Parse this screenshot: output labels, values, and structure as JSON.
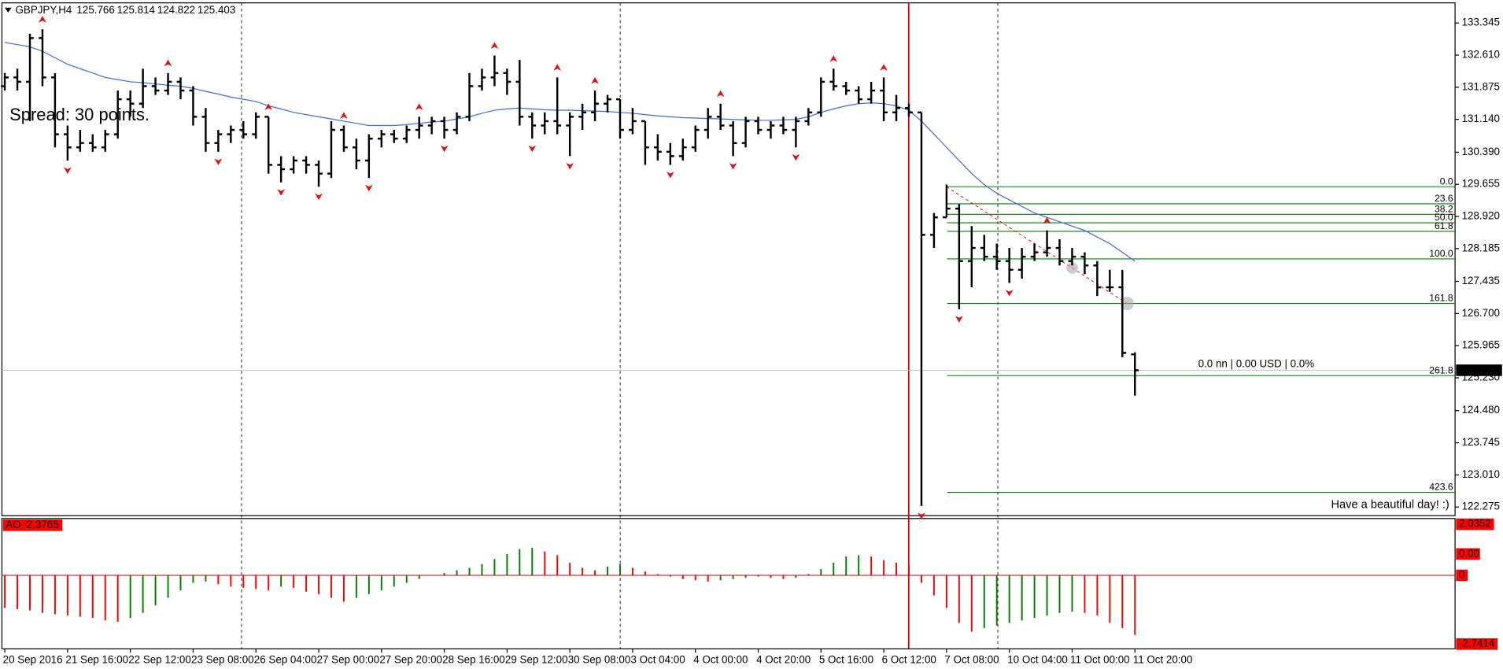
{
  "chart_data": {
    "type": "ohlc",
    "symbol": "GBPJPY,H4",
    "categories": [
      "20 Sep 2016",
      null,
      null,
      null,
      null,
      "21 Sep 16:00",
      null,
      null,
      null,
      null,
      "22 Sep 12:00",
      null,
      null,
      null,
      null,
      "23 Sep 08:00",
      null,
      null,
      null,
      null,
      "26 Sep 04:00",
      null,
      null,
      null,
      null,
      "27 Sep 00:00",
      null,
      null,
      null,
      null,
      "27 Sep 20:00",
      null,
      null,
      null,
      null,
      "28 Sep 16:00",
      null,
      null,
      null,
      null,
      "29 Sep 12:00",
      null,
      null,
      null,
      null,
      "30 Sep 08:00",
      null,
      null,
      null,
      null,
      "3 Oct 04:00",
      null,
      null,
      null,
      null,
      "4 Oct 00:00",
      null,
      null,
      null,
      null,
      "4 Oct 20:00",
      null,
      null,
      null,
      null,
      "5 Oct 16:00",
      null,
      null,
      null,
      null,
      "6 Oct 12:00",
      null,
      null,
      null,
      null,
      "7 Oct 08:00",
      null,
      null,
      null,
      null,
      "10 Oct 04:00",
      null,
      null,
      null,
      null,
      "11 Oct 00:00",
      null,
      null,
      null,
      null,
      "11 Oct 20:00"
    ],
    "ohlc": [
      [
        131.9,
        132.2,
        131.8,
        132.1
      ],
      [
        132.1,
        132.3,
        131.8,
        132.0
      ],
      [
        132.0,
        133.1,
        131.1,
        133.0
      ],
      [
        133.0,
        133.2,
        131.9,
        132.1
      ],
      [
        132.1,
        132.2,
        130.5,
        130.8
      ],
      [
        130.8,
        131.0,
        130.2,
        130.5
      ],
      [
        130.5,
        130.9,
        130.4,
        130.6
      ],
      [
        130.6,
        130.8,
        130.4,
        130.5
      ],
      [
        130.5,
        130.9,
        130.4,
        130.8
      ],
      [
        130.8,
        131.8,
        130.7,
        131.6
      ],
      [
        131.6,
        131.8,
        131.2,
        131.5
      ],
      [
        131.5,
        132.3,
        131.4,
        131.9
      ],
      [
        131.9,
        132.1,
        131.7,
        131.8
      ],
      [
        131.8,
        132.2,
        131.7,
        132.0
      ],
      [
        132.0,
        132.1,
        131.6,
        131.8
      ],
      [
        131.8,
        131.9,
        131.0,
        131.2
      ],
      [
        131.2,
        131.4,
        130.4,
        130.6
      ],
      [
        130.6,
        130.9,
        130.4,
        130.8
      ],
      [
        130.8,
        131.0,
        130.6,
        130.9
      ],
      [
        130.9,
        131.1,
        130.7,
        130.8
      ],
      [
        130.8,
        131.3,
        130.7,
        131.2
      ],
      [
        131.2,
        131.2,
        129.9,
        130.1
      ],
      [
        130.1,
        130.3,
        129.7,
        130.0
      ],
      [
        130.0,
        130.3,
        129.9,
        130.2
      ],
      [
        130.2,
        130.3,
        129.9,
        130.1
      ],
      [
        130.1,
        130.2,
        129.6,
        129.9
      ],
      [
        129.9,
        131.1,
        129.8,
        130.9
      ],
      [
        130.9,
        131.0,
        130.4,
        130.5
      ],
      [
        130.5,
        130.7,
        130.0,
        130.2
      ],
      [
        130.2,
        130.8,
        129.8,
        130.7
      ],
      [
        130.7,
        130.9,
        130.5,
        130.8
      ],
      [
        130.8,
        130.9,
        130.6,
        130.7
      ],
      [
        130.7,
        131.0,
        130.6,
        130.9
      ],
      [
        130.9,
        131.2,
        130.7,
        131.0
      ],
      [
        131.0,
        131.2,
        130.8,
        131.1
      ],
      [
        131.1,
        131.2,
        130.7,
        130.9
      ],
      [
        130.9,
        131.3,
        130.8,
        131.2
      ],
      [
        131.2,
        132.2,
        131.1,
        131.9
      ],
      [
        131.9,
        132.3,
        131.8,
        132.1
      ],
      [
        132.1,
        132.6,
        131.9,
        132.2
      ],
      [
        132.2,
        132.3,
        131.7,
        132.0
      ],
      [
        132.0,
        132.5,
        131.0,
        131.2
      ],
      [
        131.2,
        131.3,
        130.7,
        131.0
      ],
      [
        131.0,
        131.3,
        130.8,
        131.1
      ],
      [
        131.1,
        132.1,
        130.8,
        131.0
      ],
      [
        131.0,
        131.3,
        130.3,
        131.2
      ],
      [
        131.2,
        131.5,
        130.9,
        131.3
      ],
      [
        131.3,
        131.8,
        131.1,
        131.5
      ],
      [
        131.5,
        131.7,
        131.3,
        131.6
      ],
      [
        131.6,
        131.6,
        130.7,
        130.9
      ],
      [
        130.9,
        131.4,
        130.8,
        131.1
      ],
      [
        131.1,
        131.1,
        130.1,
        130.5
      ],
      [
        130.5,
        130.8,
        130.2,
        130.4
      ],
      [
        130.4,
        130.6,
        130.1,
        130.3
      ],
      [
        130.3,
        130.7,
        130.2,
        130.5
      ],
      [
        130.5,
        131.0,
        130.4,
        130.9
      ],
      [
        130.9,
        131.4,
        130.7,
        131.2
      ],
      [
        131.2,
        131.5,
        130.9,
        131.0
      ],
      [
        131.0,
        131.1,
        130.3,
        130.6
      ],
      [
        130.6,
        131.2,
        130.5,
        131.1
      ],
      [
        131.1,
        131.2,
        130.8,
        130.9
      ],
      [
        130.9,
        131.1,
        130.7,
        131.0
      ],
      [
        131.0,
        131.2,
        130.8,
        130.9
      ],
      [
        130.9,
        131.2,
        130.5,
        131.1
      ],
      [
        131.1,
        131.4,
        131.0,
        131.3
      ],
      [
        131.3,
        132.1,
        131.2,
        132.0
      ],
      [
        132.0,
        132.3,
        131.8,
        131.9
      ],
      [
        131.9,
        132.0,
        131.7,
        131.8
      ],
      [
        131.8,
        131.9,
        131.5,
        131.6
      ],
      [
        131.6,
        132.0,
        131.5,
        131.8
      ],
      [
        131.8,
        132.1,
        131.1,
        131.3
      ],
      [
        131.3,
        131.7,
        131.1,
        131.4
      ],
      [
        131.4,
        131.5,
        131.2,
        131.3
      ],
      [
        131.3,
        131.3,
        122.3,
        128.5
      ],
      [
        128.5,
        129.0,
        128.2,
        128.9
      ],
      [
        128.9,
        129.65,
        128.9,
        129.1
      ],
      [
        129.1,
        129.2,
        126.8,
        127.9
      ],
      [
        127.9,
        128.7,
        127.3,
        128.2
      ],
      [
        128.2,
        128.5,
        127.9,
        128.0
      ],
      [
        128.0,
        128.3,
        127.7,
        127.9
      ],
      [
        127.9,
        128.2,
        127.4,
        127.7
      ],
      [
        127.7,
        128.2,
        127.5,
        128.0
      ],
      [
        128.0,
        128.3,
        127.9,
        128.1
      ],
      [
        128.1,
        128.6,
        128.0,
        128.2
      ],
      [
        128.2,
        128.4,
        127.8,
        127.9
      ],
      [
        127.9,
        128.2,
        127.8,
        128.0
      ],
      [
        128.0,
        128.1,
        127.6,
        127.8
      ],
      [
        127.8,
        127.9,
        127.1,
        127.3
      ],
      [
        127.3,
        127.7,
        127.2,
        127.3
      ],
      [
        127.3,
        127.7,
        125.7,
        125.8
      ],
      [
        125.766,
        125.814,
        124.822,
        125.403
      ]
    ],
    "color": "#000000",
    "ylim": [
      122.078,
      133.783
    ],
    "yticks": [
      133.345,
      {
        "value": 132.61,
        "label": "132.610"
      },
      131.875,
      {
        "value": 131.14,
        "label": "131.140"
      },
      {
        "value": 130.39,
        "label": "130.390"
      },
      129.655,
      {
        "value": 128.92,
        "label": "128.920"
      },
      128.185,
      127.435,
      {
        "value": 126.7,
        "label": "126.700"
      },
      125.965,
      {
        "value": 125.23,
        "label": "125.230"
      },
      {
        "value": 124.48,
        "label": "124.480"
      },
      123.745,
      {
        "value": 123.01,
        "label": "123.010"
      },
      122.275
    ],
    "ma": {
      "color": "#4169e1",
      "values": [
        132.9,
        132.85,
        132.8,
        132.7,
        132.55,
        132.4,
        132.3,
        132.2,
        132.1,
        132.05,
        132.0,
        131.98,
        131.95,
        131.92,
        131.9,
        131.85,
        131.78,
        131.72,
        131.65,
        131.6,
        131.55,
        131.45,
        131.38,
        131.3,
        131.25,
        131.2,
        131.15,
        131.1,
        131.05,
        131.0,
        131.0,
        131.0,
        131.02,
        131.05,
        131.08,
        131.1,
        131.15,
        131.2,
        131.28,
        131.35,
        131.38,
        131.4,
        131.38,
        131.36,
        131.35,
        131.35,
        131.34,
        131.33,
        131.32,
        131.3,
        131.28,
        131.25,
        131.22,
        131.2,
        131.18,
        131.17,
        131.16,
        131.15,
        131.14,
        131.13,
        131.12,
        131.12,
        131.13,
        131.14,
        131.2,
        131.3,
        131.38,
        131.45,
        131.5,
        131.52,
        131.5,
        131.45,
        131.35,
        131.1,
        130.8,
        130.5,
        130.2,
        129.9,
        129.65,
        129.45,
        129.3,
        129.15,
        129.0,
        128.9,
        128.8,
        128.7,
        128.6,
        128.45,
        128.3,
        128.1,
        127.9
      ]
    },
    "fractals": {
      "color": "#e01010",
      "up": [
        null,
        null,
        null,
        133.2,
        null,
        null,
        null,
        null,
        null,
        null,
        null,
        null,
        null,
        132.2,
        null,
        null,
        null,
        null,
        null,
        null,
        null,
        131.2,
        null,
        null,
        null,
        null,
        null,
        131.0,
        null,
        null,
        null,
        null,
        null,
        131.2,
        null,
        null,
        null,
        null,
        null,
        132.6,
        null,
        null,
        null,
        null,
        132.1,
        null,
        null,
        131.8,
        null,
        null,
        null,
        null,
        null,
        null,
        null,
        null,
        null,
        131.5,
        null,
        null,
        null,
        null,
        null,
        null,
        null,
        null,
        132.3,
        null,
        null,
        null,
        132.1,
        null,
        null,
        null,
        null,
        null,
        null,
        null,
        null,
        null,
        null,
        null,
        null,
        128.6,
        null,
        null,
        null,
        null,
        null,
        null,
        null
      ],
      "down": [
        null,
        null,
        null,
        null,
        null,
        130.2,
        null,
        null,
        null,
        null,
        null,
        null,
        null,
        null,
        null,
        null,
        null,
        130.4,
        null,
        null,
        null,
        null,
        129.7,
        null,
        null,
        129.6,
        null,
        null,
        null,
        129.8,
        null,
        null,
        null,
        null,
        null,
        130.7,
        null,
        null,
        null,
        null,
        null,
        null,
        130.7,
        null,
        null,
        130.3,
        null,
        null,
        null,
        null,
        null,
        null,
        null,
        130.1,
        null,
        null,
        null,
        null,
        130.3,
        null,
        null,
        null,
        null,
        130.5,
        null,
        null,
        null,
        null,
        null,
        null,
        null,
        null,
        null,
        122.3,
        null,
        null,
        126.8,
        null,
        null,
        null,
        127.4,
        null,
        null,
        null,
        null,
        null,
        null,
        null,
        null,
        null,
        null
      ]
    },
    "fibo": {
      "color": "#008000",
      "price_0": 129.6,
      "price_100": 127.95,
      "levels": [
        {
          "value": 0,
          "label": "0.0"
        },
        23.6,
        38.2,
        {
          "value": 50,
          "label": "50.0"
        },
        61.8,
        {
          "value": 100,
          "label": "100.0"
        },
        161.8,
        261.8,
        423.6
      ]
    },
    "trendline": {
      "color": "#ff0000",
      "values": [
        129.6,
        126.93
      ]
    },
    "spread_text": "Spread: 30 points.",
    "info_text": "0.0 nn | 0.00 USD | 0.0%",
    "greeting": "Have a beautiful day! :)",
    "ao": {
      "type": "histogram",
      "name": "AO",
      "up_color": "#008000",
      "down_color": "#ff0000",
      "zero_color": "#c00000",
      "values": [
        -1.3,
        -1.35,
        -1.4,
        -1.5,
        -1.55,
        -1.6,
        -1.65,
        -1.7,
        -1.8,
        -1.85,
        -1.7,
        -1.5,
        -1.2,
        -0.9,
        -0.6,
        -0.3,
        -0.25,
        -0.35,
        -0.45,
        -0.5,
        -0.55,
        -0.6,
        -0.45,
        -0.5,
        -0.65,
        -0.75,
        -0.9,
        -1.05,
        -0.9,
        -0.75,
        -0.6,
        -0.45,
        -0.3,
        -0.15,
        0,
        0.1,
        0.2,
        0.3,
        0.45,
        0.65,
        0.85,
        1.05,
        1.1,
        0.95,
        0.8,
        0.5,
        0.3,
        0.2,
        0.35,
        0.45,
        0.3,
        0.15,
        0.05,
        -0.05,
        -0.15,
        -0.2,
        -0.25,
        -0.2,
        -0.15,
        -0.1,
        -0.05,
        -0.1,
        -0.15,
        -0.1,
        0.05,
        0.25,
        0.5,
        0.75,
        0.8,
        0.75,
        0.6,
        0.5,
        0.4,
        -0.3,
        -0.8,
        -1.3,
        -1.9,
        -2.25,
        -2.1,
        -2.0,
        -1.9,
        -1.8,
        -1.7,
        -1.6,
        -1.5,
        -1.45,
        -1.5,
        -1.6,
        -1.9,
        -2.1,
        -2.3765
      ],
      "ylim": [
        -2.7414,
        2.0352
      ],
      "yticks": [
        2.0352,
        0,
        -2.7414
      ],
      "level_label": "0.00"
    }
  }
}
